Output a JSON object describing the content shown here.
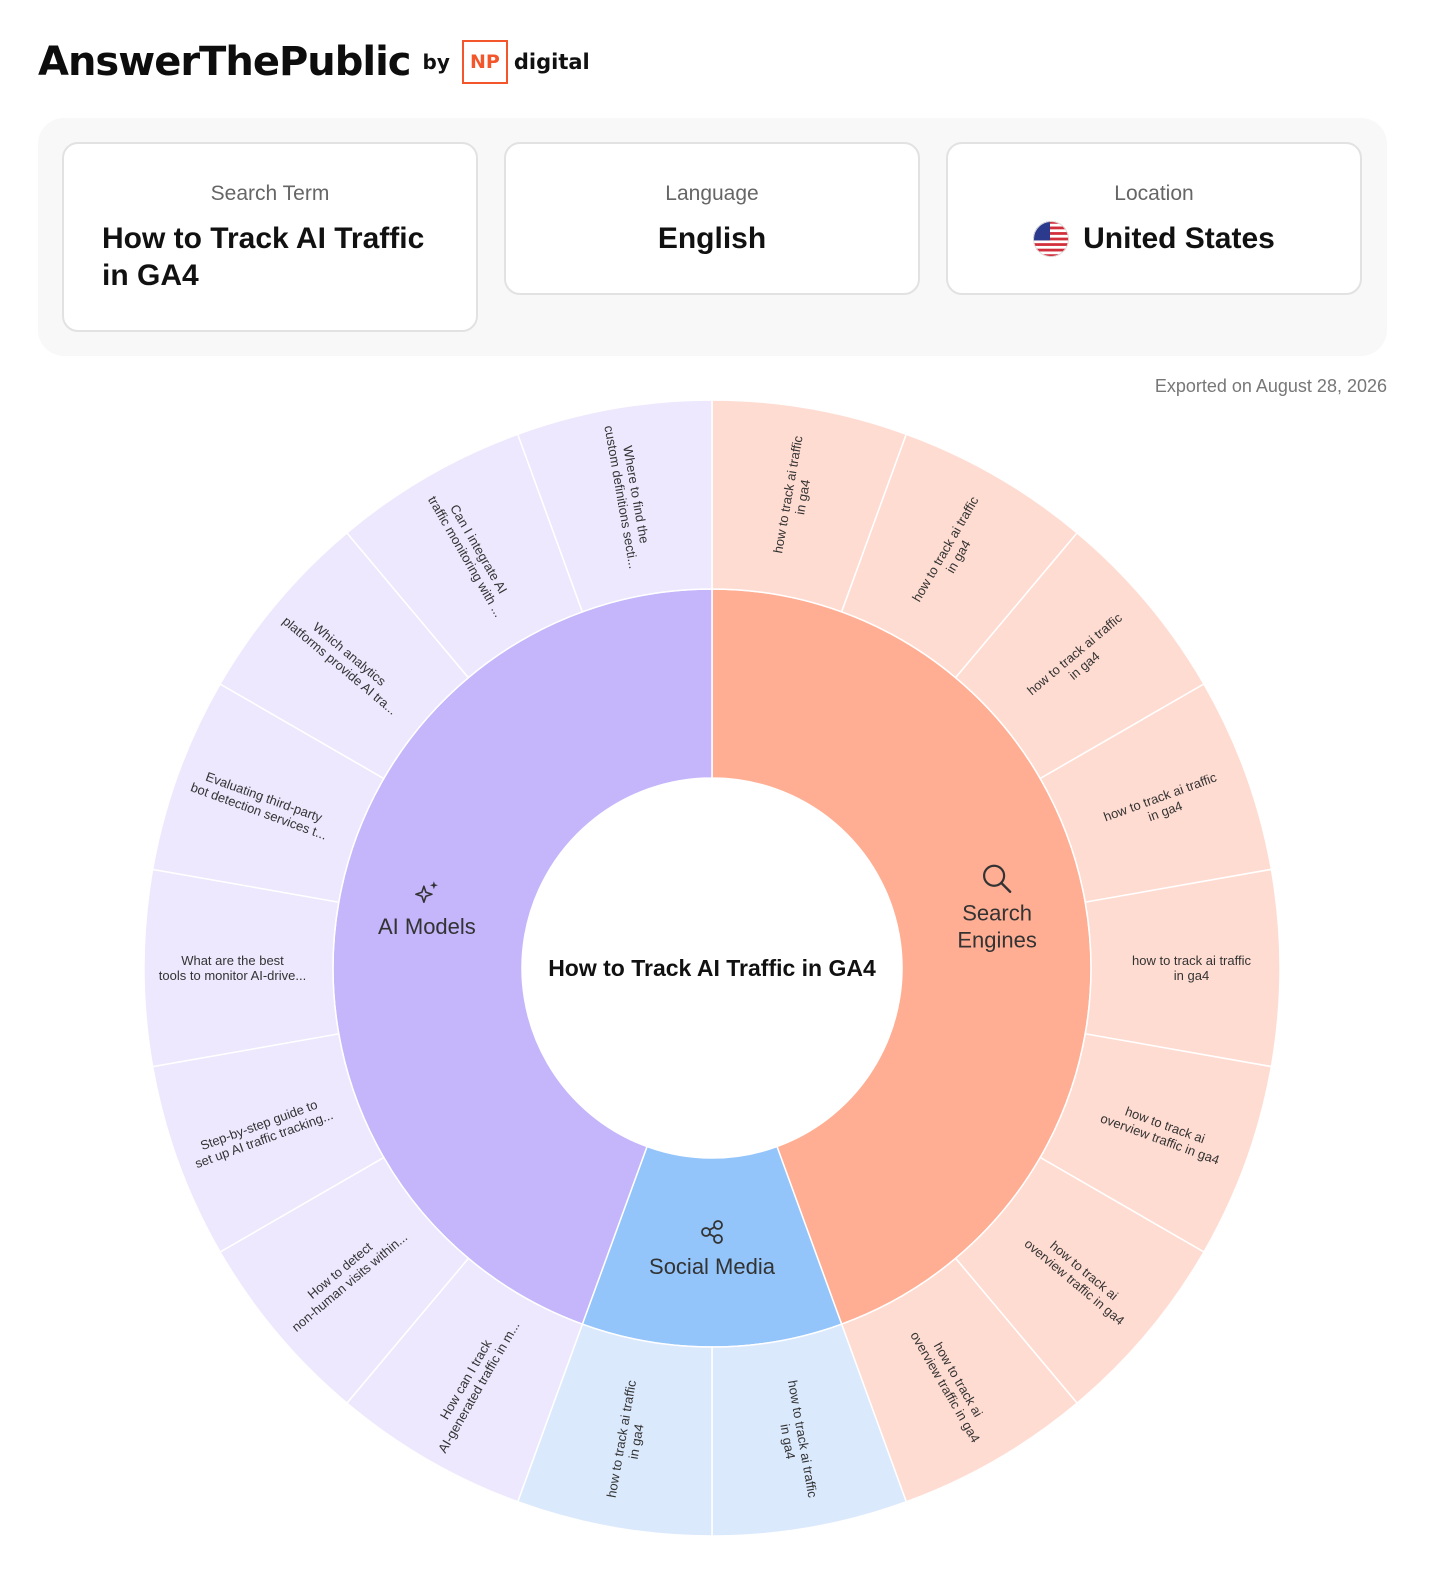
{
  "header": {
    "logo": "AnswerThePublic",
    "by": "by",
    "np": "NP",
    "digital": "digital"
  },
  "filters": {
    "search_term_label": "Search Term",
    "search_term": "How to Track AI Traffic in GA4",
    "language_label": "Language",
    "language": "English",
    "location_label": "Location",
    "location": "United States",
    "flag_icon": "us-flag-icon"
  },
  "exported": "Exported on August 28, 2026",
  "chart_data": {
    "type": "sunburst",
    "center": "How to Track AI Traffic in GA4",
    "categories": [
      {
        "name": "Search Engines",
        "icon": "search-icon",
        "inner_color": "#ffae93",
        "outer_color": "#ffdcd2",
        "queries": [
          [
            "how to track ai traffic",
            "in ga4"
          ],
          [
            "how to track ai traffic",
            "in ga4"
          ],
          [
            "how to track ai traffic",
            "in ga4"
          ],
          [
            "how to track ai traffic",
            "in ga4"
          ],
          [
            "how to track ai traffic",
            "in ga4"
          ],
          [
            "how to track ai",
            "overview traffic in ga4"
          ],
          [
            "how to track ai",
            "overview traffic in ga4"
          ],
          [
            "how to track ai",
            "overview traffic in ga4"
          ]
        ]
      },
      {
        "name": "Social Media",
        "icon": "share-icon",
        "inner_color": "#93c5fb",
        "outer_color": "#dbe9fd",
        "queries": [
          [
            "how to track ai traffic",
            "in ga4"
          ],
          [
            "how to track ai traffic",
            "in ga4"
          ]
        ]
      },
      {
        "name": "AI Models",
        "icon": "sparkles-icon",
        "inner_color": "#c5b5fb",
        "outer_color": "#ede8fd",
        "queries": [
          [
            "How can I track",
            "AI-generated traffic in m..."
          ],
          [
            "How to detect",
            "non-human visits within..."
          ],
          [
            "Step-by-step guide to",
            "set up AI traffic tracking..."
          ],
          [
            "What are the best",
            "tools to monitor AI-drive..."
          ],
          [
            "Evaluating third-party",
            "bot detection services t..."
          ],
          [
            "Which analytics",
            "platforms provide AI tra..."
          ],
          [
            "Can I integrate AI",
            "traffic monitoring with ..."
          ],
          [
            "Where to find the",
            "custom definitions secti..."
          ]
        ]
      }
    ]
  }
}
